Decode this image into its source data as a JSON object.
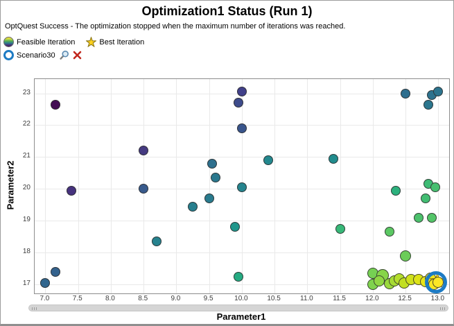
{
  "header": {
    "title": "Optimization1 Status (Run 1)",
    "status_message": "OptQuest Success - The optimization stopped when the maximum number of iterations was reached."
  },
  "legend": {
    "feasible_label": "Feasible Iteration",
    "best_label": "Best Iteration"
  },
  "scenario": {
    "name": "Scenario30"
  },
  "icons": {
    "feasible": "gradient-circle-icon",
    "best": "star-icon",
    "selected_scenario": "blue-ring-icon",
    "zoom": "magnifier-icon",
    "remove": "red-x-icon"
  },
  "colors": {
    "selection_ring": "#1d7bc4",
    "star_fill": "#fde21f",
    "star_stroke": "#9c8410",
    "remove_x": "#c1271d",
    "grid": "#e9e9e9",
    "plot_border": "#8c8c8c",
    "point_outline": "rgba(45,45,45,0.85)"
  },
  "chart_data": {
    "type": "scatter",
    "xlabel": "Parameter1",
    "ylabel": "Parameter2",
    "xlim": [
      6.84,
      13.16
    ],
    "ylim": [
      16.76,
      23.45
    ],
    "grid": true,
    "legend_position": "top-left-above-plot",
    "xticks": [
      7.0,
      7.5,
      8.0,
      8.5,
      9.0,
      9.5,
      10.0,
      10.5,
      11.0,
      11.5,
      12.0,
      12.5,
      13.0
    ],
    "xtick_labels": [
      "7.0",
      "7.5",
      "8.0",
      "8.5",
      "9.0",
      "9.5",
      "10.0",
      "10.5",
      "11.0",
      "11.5",
      "12.0",
      "12.5",
      "13.0"
    ],
    "yticks": [
      17,
      18,
      19,
      20,
      21,
      22,
      23
    ],
    "ytick_labels": [
      "17",
      "18",
      "19",
      "20",
      "21",
      "22",
      "23"
    ],
    "layout": {
      "x_min": 7.0,
      "y_max": 23.0,
      "x0": 15.4,
      "x_scale": 94.5,
      "y0": 20.5,
      "y_scale": 45.92,
      "default_radius": 7
    },
    "points": [
      {
        "x": 7.15,
        "y": 22.65,
        "c": "#440d54"
      },
      {
        "x": 7.4,
        "y": 19.95,
        "c": "#46327e"
      },
      {
        "x": 8.5,
        "y": 21.2,
        "c": "#453a81"
      },
      {
        "x": 10.0,
        "y": 23.05,
        "c": "#41408a"
      },
      {
        "x": 9.95,
        "y": 22.7,
        "c": "#3d4b8b"
      },
      {
        "x": 10.0,
        "y": 21.9,
        "c": "#39558c"
      },
      {
        "x": 8.5,
        "y": 20.0,
        "c": "#385a8c"
      },
      {
        "x": 7.15,
        "y": 17.4,
        "c": "#33628d"
      },
      {
        "x": 7.0,
        "y": 17.05,
        "c": "#31668e"
      },
      {
        "x": 12.5,
        "y": 23.0,
        "c": "#2e6e8e"
      },
      {
        "x": 9.55,
        "y": 20.8,
        "c": "#2e708e"
      },
      {
        "x": 12.9,
        "y": 22.95,
        "c": "#2d728e"
      },
      {
        "x": 13.0,
        "y": 23.05,
        "c": "#2c748e"
      },
      {
        "x": 12.85,
        "y": 22.65,
        "c": "#2b768e"
      },
      {
        "x": 9.6,
        "y": 20.35,
        "c": "#2a788e"
      },
      {
        "x": 9.5,
        "y": 19.7,
        "c": "#297b8e"
      },
      {
        "x": 9.25,
        "y": 19.45,
        "c": "#277f8e"
      },
      {
        "x": 8.7,
        "y": 18.35,
        "c": "#26828e"
      },
      {
        "x": 10.0,
        "y": 20.05,
        "c": "#25848e"
      },
      {
        "x": 10.4,
        "y": 20.9,
        "c": "#23888e"
      },
      {
        "x": 11.4,
        "y": 20.95,
        "c": "#218c8d"
      },
      {
        "x": 9.9,
        "y": 18.8,
        "c": "#1f968b"
      },
      {
        "x": 9.95,
        "y": 17.25,
        "c": "#25ab82"
      },
      {
        "x": 12.35,
        "y": 19.95,
        "c": "#2cb17d"
      },
      {
        "x": 11.5,
        "y": 18.75,
        "c": "#37b878"
      },
      {
        "x": 12.85,
        "y": 20.15,
        "c": "#3dbb74"
      },
      {
        "x": 12.95,
        "y": 20.05,
        "c": "#46bf70"
      },
      {
        "x": 12.8,
        "y": 19.7,
        "c": "#42bd72"
      },
      {
        "x": 12.7,
        "y": 19.1,
        "c": "#4cc16c"
      },
      {
        "x": 12.9,
        "y": 19.1,
        "c": "#53c568"
      },
      {
        "x": 12.25,
        "y": 18.65,
        "c": "#5bc863"
      },
      {
        "x": 12.5,
        "y": 17.9,
        "c": "#6bcc59",
        "r": 8
      },
      {
        "x": 12.0,
        "y": 17.35,
        "c": "#76d053",
        "r": 8
      },
      {
        "x": 12.0,
        "y": 17.0,
        "c": "#7fd34d",
        "r": 8
      },
      {
        "x": 12.15,
        "y": 17.28,
        "c": "#87d549",
        "r": 9
      },
      {
        "x": 12.1,
        "y": 17.1,
        "c": "#90d743",
        "r": 8
      },
      {
        "x": 12.25,
        "y": 17.03,
        "c": "#9ad93d",
        "r": 8
      },
      {
        "x": 12.33,
        "y": 17.1,
        "c": "#a6db35",
        "r": 8
      },
      {
        "x": 12.4,
        "y": 17.17,
        "c": "#b4de2c",
        "r": 8
      },
      {
        "x": 12.48,
        "y": 17.04,
        "c": "#c2df23",
        "r": 8
      },
      {
        "x": 12.58,
        "y": 17.15,
        "c": "#cfe11c",
        "r": 8
      },
      {
        "x": 12.7,
        "y": 17.15,
        "c": "#dde318",
        "r": 8
      },
      {
        "x": 12.8,
        "y": 17.08,
        "c": "#e8e419",
        "r": 8
      },
      {
        "x": 12.88,
        "y": 17.2,
        "c": "#f1e51c",
        "r": 8
      },
      {
        "t": "star",
        "x": 12.98,
        "y": 17.12
      },
      {
        "x": 12.93,
        "y": 17.0,
        "c": "#f9e622",
        "r": 8
      },
      {
        "x": 12.99,
        "y": 17.07,
        "c": "#fde725",
        "r": 8
      }
    ],
    "best_iteration": {
      "x": 12.98,
      "y": 17.12
    },
    "selected_scenario": {
      "label": "Scenario30",
      "x": 12.96,
      "y": 17.06
    }
  }
}
